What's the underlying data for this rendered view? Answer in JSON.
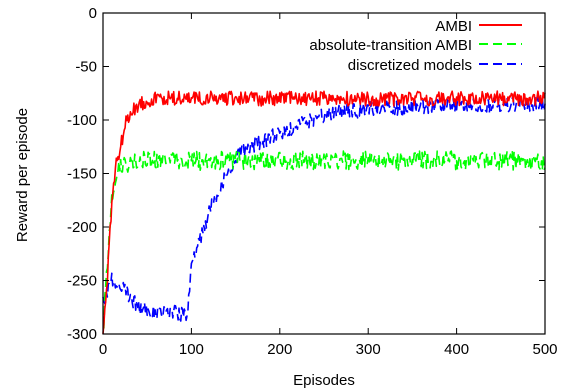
{
  "chart_data": {
    "type": "line",
    "title": "",
    "xlabel": "Episodes",
    "ylabel": "Reward per episode",
    "xlim": [
      0,
      500
    ],
    "ylim": [
      -300,
      0
    ],
    "xticks": [
      0,
      100,
      200,
      300,
      400,
      500
    ],
    "yticks": [
      0,
      -50,
      -100,
      -150,
      -200,
      -250,
      -300
    ],
    "grid": false,
    "legend_position": "top-right",
    "series": [
      {
        "name": "AMBI",
        "color": "#ff0000",
        "style": "solid",
        "x": [
          0,
          5,
          10,
          15,
          20,
          25,
          30,
          40,
          50,
          60,
          80,
          100,
          120,
          150,
          200,
          250,
          300,
          350,
          400,
          450,
          500
        ],
        "y": [
          -300,
          -250,
          -175,
          -140,
          -125,
          -105,
          -95,
          -85,
          -82,
          -80,
          -80,
          -80,
          -80,
          -80,
          -80,
          -80,
          -80,
          -80,
          -80,
          -80,
          -80
        ]
      },
      {
        "name": "absolute-transition AMBI",
        "color": "#00ff00",
        "style": "dashed",
        "x": [
          0,
          5,
          10,
          15,
          20,
          30,
          50,
          100,
          150,
          200,
          250,
          300,
          350,
          400,
          450,
          500
        ],
        "y": [
          -300,
          -230,
          -170,
          -150,
          -145,
          -140,
          -138,
          -138,
          -138,
          -138,
          -138,
          -138,
          -138,
          -138,
          -138,
          -138
        ]
      },
      {
        "name": "discretized models",
        "color": "#0000ff",
        "style": "dashed",
        "x": [
          0,
          5,
          10,
          20,
          30,
          40,
          50,
          60,
          70,
          80,
          90,
          95,
          100,
          105,
          110,
          115,
          120,
          130,
          140,
          150,
          160,
          180,
          200,
          220,
          250,
          300,
          350,
          400,
          450,
          500
        ],
        "y": [
          -270,
          -260,
          -250,
          -255,
          -265,
          -275,
          -278,
          -280,
          -280,
          -280,
          -282,
          -282,
          -240,
          -222,
          -212,
          -200,
          -185,
          -168,
          -150,
          -135,
          -128,
          -120,
          -112,
          -105,
          -95,
          -90,
          -88,
          -87,
          -86,
          -85
        ]
      }
    ]
  }
}
